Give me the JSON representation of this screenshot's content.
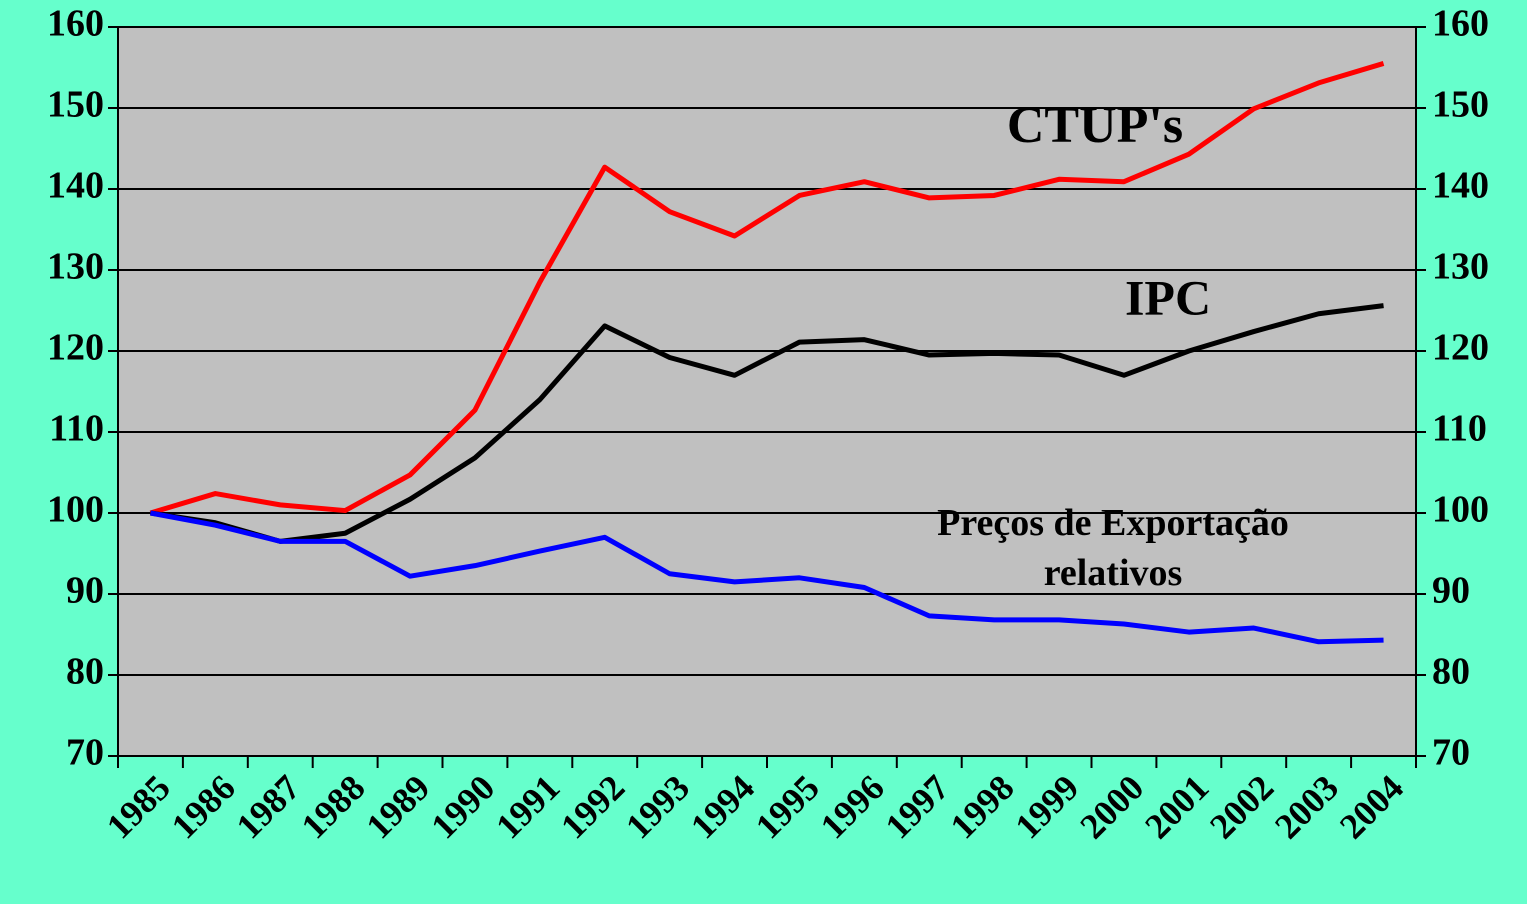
{
  "chart_data": {
    "type": "line",
    "categories": [
      "1985",
      "1986",
      "1987",
      "1988",
      "1989",
      "1990",
      "1991",
      "1992",
      "1993",
      "1994",
      "1995",
      "1996",
      "1997",
      "1998",
      "1999",
      "2000",
      "2001",
      "2002",
      "2003",
      "2004"
    ],
    "series": [
      {
        "name": "CTUP's",
        "color": "#ff0000",
        "values": [
          100,
          102.4,
          101,
          100.3,
          104.7,
          112.7,
          128.5,
          142.7,
          137.2,
          134.2,
          139.2,
          140.9,
          138.9,
          139.2,
          141.2,
          140.9,
          144.3,
          149.9,
          153.1,
          155.5
        ]
      },
      {
        "name": "IPC",
        "color": "#000000",
        "values": [
          100,
          98.8,
          96.5,
          97.5,
          101.7,
          106.8,
          114,
          123.1,
          119.2,
          117,
          121.1,
          121.4,
          119.5,
          119.7,
          119.5,
          117,
          120,
          122.4,
          124.6,
          125.6
        ]
      },
      {
        "name": "Preços de Exportação relativos",
        "color": "#0000ff",
        "values": [
          100,
          98.5,
          96.5,
          96.5,
          92.2,
          93.5,
          95.3,
          97,
          92.5,
          91.5,
          92,
          90.8,
          87.3,
          86.8,
          86.8,
          86.3,
          85.3,
          85.8,
          84.1,
          84.3
        ]
      }
    ],
    "ylim": [
      70,
      160
    ],
    "yticks": [
      70,
      80,
      90,
      100,
      110,
      120,
      130,
      140,
      150,
      160
    ],
    "y2lim": [
      70,
      160
    ],
    "y2ticks": [
      70,
      80,
      90,
      100,
      110,
      120,
      130,
      140,
      150,
      160
    ],
    "grid": true
  }
}
